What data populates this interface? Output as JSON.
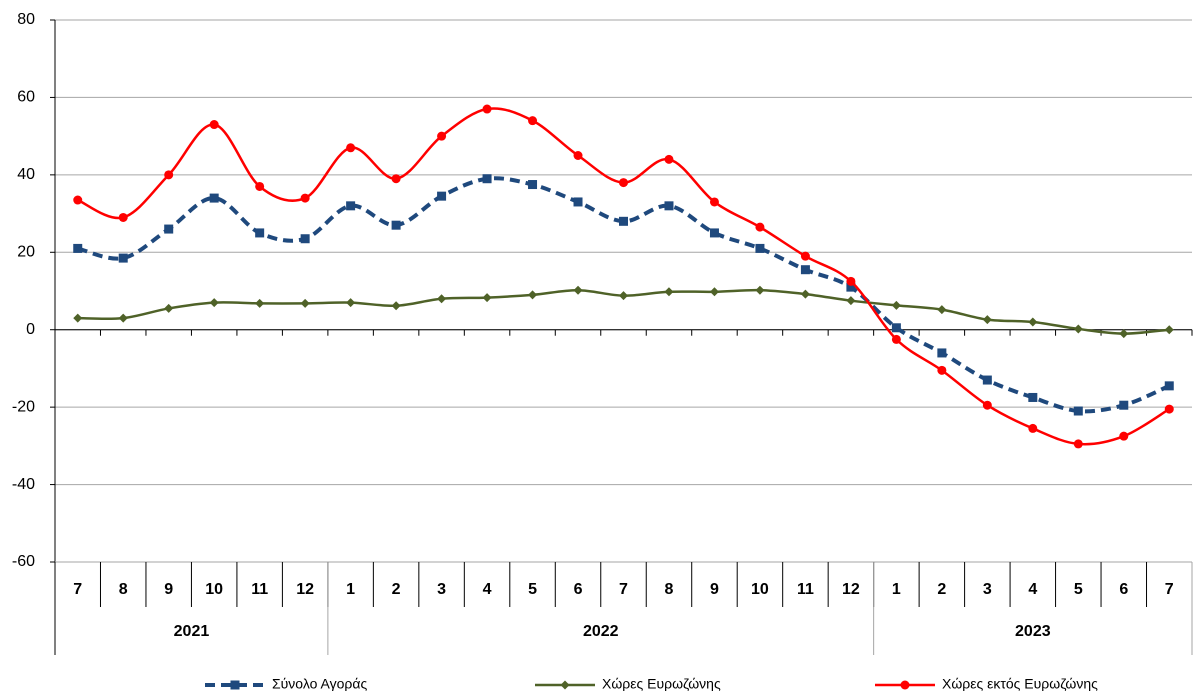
{
  "chart_data": {
    "type": "line",
    "categories": [
      "7",
      "8",
      "9",
      "10",
      "11",
      "12",
      "1",
      "2",
      "3",
      "4",
      "5",
      "6",
      "7",
      "8",
      "9",
      "10",
      "11",
      "12",
      "1",
      "2",
      "3",
      "4",
      "5",
      "6",
      "7"
    ],
    "groups": [
      {
        "name": "2021",
        "count": 6
      },
      {
        "name": "2022",
        "count": 12
      },
      {
        "name": "2023",
        "count": 7
      }
    ],
    "series": [
      {
        "name": "Σύνολο Αγοράς",
        "color": "#1f497d",
        "dash": true,
        "marker": "square",
        "values": [
          21,
          18.5,
          26,
          34,
          25,
          23.5,
          32,
          27,
          34.5,
          39,
          37.5,
          33,
          28,
          32,
          25,
          21,
          15.5,
          11,
          0.5,
          -6,
          -13,
          -17.5,
          -21,
          -19.5,
          -14.5
        ]
      },
      {
        "name": "Χώρες Ευρωζώνης",
        "color": "#4f6228",
        "dash": false,
        "marker": "diamond",
        "values": [
          3,
          3,
          5.5,
          7,
          6.8,
          6.8,
          7,
          6.2,
          8,
          8.3,
          9,
          10.2,
          8.8,
          9.8,
          9.8,
          10.2,
          9.2,
          7.5,
          6.3,
          5.2,
          2.6,
          2,
          0.2,
          -1,
          0
        ]
      },
      {
        "name": "Χώρες εκτός Ευρωζώνης",
        "color": "#ff0000",
        "dash": false,
        "marker": "circle",
        "values": [
          33.5,
          29,
          40,
          53,
          37,
          34,
          47,
          39,
          50,
          57,
          54,
          45,
          38,
          44,
          33,
          26.5,
          19,
          12.5,
          -2.5,
          -10.5,
          -19.5,
          -25.5,
          -29.5,
          -27.5,
          -20.5
        ]
      }
    ],
    "ylim": [
      -60,
      80
    ],
    "yticks": [
      -60,
      -40,
      -20,
      0,
      20,
      40,
      60,
      80
    ],
    "grid": true
  }
}
